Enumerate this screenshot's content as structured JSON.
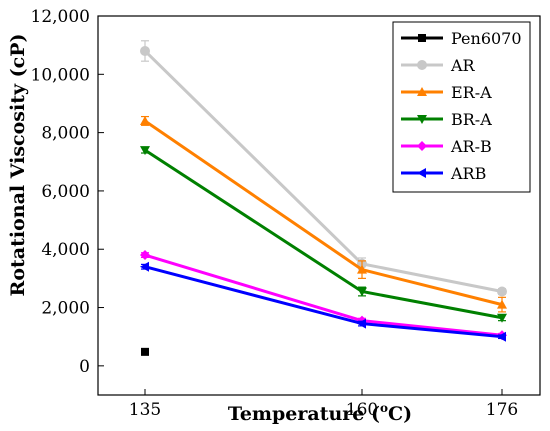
{
  "chart_data": {
    "type": "line",
    "xlabel": "Temperature (°C)",
    "xlabel_parts": [
      "Temperature (",
      "o",
      "C)"
    ],
    "ylabel": "Rotational Viscosity (cP)",
    "x": [
      135,
      160,
      176
    ],
    "x_tick_labels": [
      "135",
      "160",
      "176"
    ],
    "ylim": [
      -1000,
      12000
    ],
    "y_ticks": [
      0,
      2000,
      4000,
      6000,
      8000,
      10000,
      12000
    ],
    "y_tick_labels": [
      "0",
      "2,000",
      "4,000",
      "6,000",
      "8,000",
      "10,000",
      "12,000"
    ],
    "legend_position": "top-right",
    "series": [
      {
        "name": "Pen6070",
        "color": "#000000",
        "marker": "square",
        "values": [
          480,
          null,
          null
        ],
        "errors": [
          0,
          0,
          0
        ]
      },
      {
        "name": "AR",
        "color": "#c8c8c8",
        "marker": "circle",
        "values": [
          10800,
          3500,
          2550
        ],
        "errors": [
          350,
          200,
          100
        ]
      },
      {
        "name": "ER-A",
        "color": "#ff8000",
        "marker": "triangle-up",
        "values": [
          8400,
          3300,
          2100
        ],
        "errors": [
          150,
          300,
          250
        ]
      },
      {
        "name": "BR-A",
        "color": "#008000",
        "marker": "triangle-down",
        "values": [
          7400,
          2550,
          1650
        ],
        "errors": [
          100,
          150,
          100
        ]
      },
      {
        "name": "AR-B",
        "color": "#ff00ff",
        "marker": "diamond",
        "values": [
          3800,
          1550,
          1050
        ],
        "errors": [
          80,
          80,
          60
        ]
      },
      {
        "name": "ARB",
        "color": "#0000ff",
        "marker": "triangle-left",
        "values": [
          3400,
          1450,
          1000
        ],
        "errors": [
          80,
          80,
          60
        ]
      }
    ]
  }
}
